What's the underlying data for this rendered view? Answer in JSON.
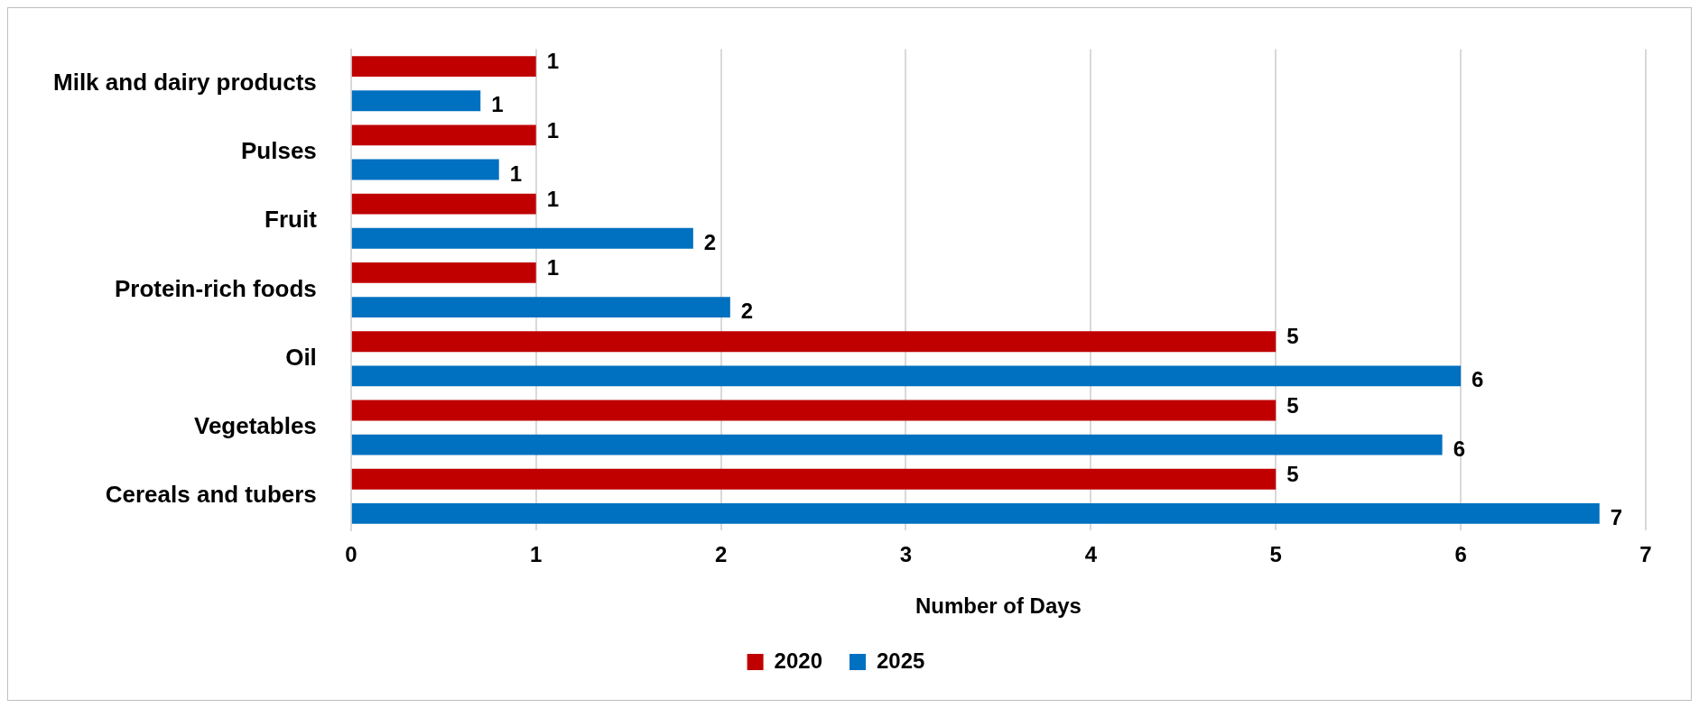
{
  "chart_data": {
    "type": "bar",
    "orientation": "horizontal",
    "xlabel": "Number of Days",
    "categories": [
      "Milk and dairy products",
      "Pulses",
      "Fruit",
      "Protein-rich foods",
      "Oil",
      "Vegetables",
      "Cereals and tubers"
    ],
    "series": [
      {
        "name": "2020",
        "color": "#c00000",
        "values": [
          1.0,
          1.0,
          1.0,
          1.0,
          5.0,
          5.0,
          5.0
        ],
        "value_labels": [
          "1",
          "1",
          "1",
          "1",
          "5",
          "5",
          "5"
        ]
      },
      {
        "name": "2025",
        "color": "#0070c0",
        "values": [
          0.7,
          0.8,
          1.85,
          2.05,
          6.0,
          5.9,
          6.75
        ],
        "value_labels": [
          "1",
          "1",
          "2",
          "2",
          "6",
          "6",
          "7"
        ]
      }
    ],
    "xlim": [
      0,
      7
    ],
    "xticks": [
      0,
      1,
      2,
      3,
      4,
      5,
      6,
      7
    ],
    "grid": "x",
    "legend": "bottom"
  }
}
